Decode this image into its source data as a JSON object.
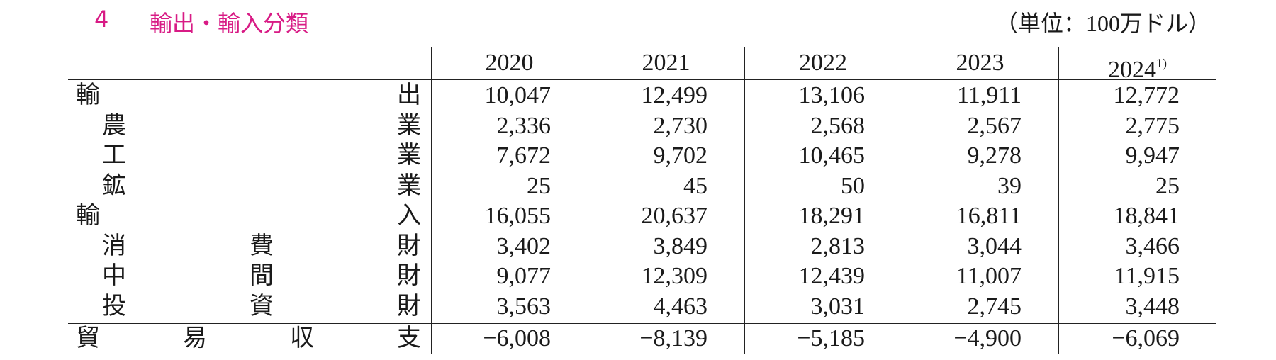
{
  "header": {
    "number": "4",
    "title": "輸出・輸入分類",
    "unit": "（単位：100万ドル）"
  },
  "table": {
    "columns": [
      {
        "text": "2020"
      },
      {
        "text": "2021"
      },
      {
        "text": "2022"
      },
      {
        "text": "2023"
      },
      {
        "text": "2024",
        "note": "1)"
      }
    ],
    "sections": [
      {
        "label": [
          "輸",
          "出"
        ],
        "values": [
          "10,047",
          "12,499",
          "13,106",
          "11,911",
          "12,772"
        ],
        "items": [
          {
            "label": [
              "農",
              "業"
            ],
            "values": [
              "2,336",
              "2,730",
              "2,568",
              "2,567",
              "2,775"
            ]
          },
          {
            "label": [
              "工",
              "業"
            ],
            "values": [
              "7,672",
              "9,702",
              "10,465",
              "9,278",
              "9,947"
            ]
          },
          {
            "label": [
              "鉱",
              "業"
            ],
            "values": [
              "25",
              "45",
              "50",
              "39",
              "25"
            ]
          }
        ]
      },
      {
        "label": [
          "輸",
          "入"
        ],
        "values": [
          "16,055",
          "20,637",
          "18,291",
          "16,811",
          "18,841"
        ],
        "items": [
          {
            "label": [
              "消",
              "費",
              "財"
            ],
            "values": [
              "3,402",
              "3,849",
              "2,813",
              "3,044",
              "3,466"
            ]
          },
          {
            "label": [
              "中",
              "間",
              "財"
            ],
            "values": [
              "9,077",
              "12,309",
              "12,439",
              "11,007",
              "11,915"
            ]
          },
          {
            "label": [
              "投",
              "資",
              "財"
            ],
            "values": [
              "3,563",
              "4,463",
              "3,031",
              "2,745",
              "3,448"
            ]
          }
        ]
      }
    ],
    "balance": {
      "label": [
        "貿",
        "易",
        "収",
        "支"
      ],
      "values": [
        "−6,008",
        "−8,139",
        "−5,185",
        "−4,900",
        "−6,069"
      ]
    }
  }
}
